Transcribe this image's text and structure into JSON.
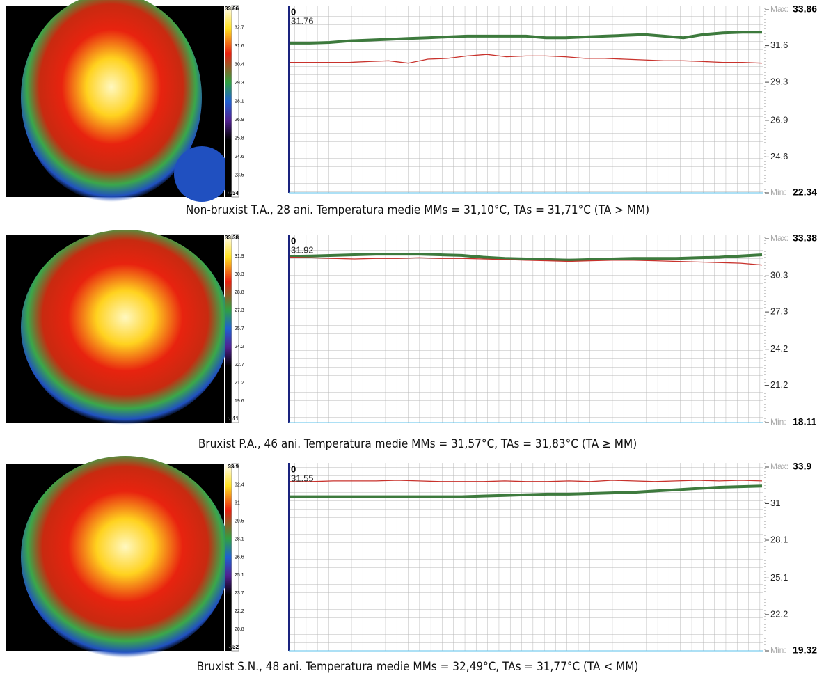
{
  "figure": {
    "captions": [
      "Non-bruxist T.A., 28 ani. Temperatura medie MMs = 31,10°C, TAs = 31,71°C (TA > MM)",
      "Bruxist P.A., 46 ani. Temperatura medie MMs = 31,57°C, TAs = 31,83°C (TA ≥ MM)",
      "Bruxist S.N., 48 ani. Temperatura medie MMs = 32,49°C, TAs = 31,77°C (TA < MM)"
    ],
    "colorbars": [
      {
        "max_label": "Max:",
        "min_label": "Min:",
        "ticks": [
          33.86,
          32.7,
          31.6,
          30.4,
          29.3,
          28.1,
          26.9,
          25.8,
          24.6,
          23.5,
          22.34
        ]
      },
      {
        "max_label": "Max:",
        "min_label": "Min:",
        "ticks": [
          33.38,
          31.9,
          30.3,
          28.8,
          27.3,
          25.7,
          24.2,
          22.7,
          21.2,
          19.6,
          18.11
        ]
      },
      {
        "max_label": "Max:",
        "min_label": "Min:",
        "ticks": [
          33.9,
          32.4,
          31,
          29.5,
          28.1,
          26.6,
          25.1,
          23.7,
          22.2,
          20.8,
          19.32
        ]
      }
    ]
  },
  "chart_data": [
    {
      "type": "line",
      "ylim": [
        22.34,
        33.86
      ],
      "yticks": [
        22.34,
        24.6,
        26.9,
        29.3,
        31.6,
        33.86
      ],
      "max_label": "Max:",
      "min_label": "Min:",
      "cursor_label": "0",
      "cursor_value": 31.76,
      "grid": true,
      "series": [
        {
          "color": "#3d7a3d",
          "values": [
            31.76,
            31.76,
            31.8,
            31.9,
            31.95,
            32.0,
            32.05,
            32.1,
            32.15,
            32.2,
            32.2,
            32.2,
            32.2,
            32.1,
            32.1,
            32.15,
            32.2,
            32.25,
            32.3,
            32.2,
            32.1,
            32.3,
            32.4,
            32.45,
            32.45
          ]
        },
        {
          "color": "#c8322c",
          "values": [
            30.55,
            30.55,
            30.55,
            30.55,
            30.6,
            30.65,
            30.5,
            30.75,
            30.8,
            30.95,
            31.05,
            30.9,
            30.95,
            30.95,
            30.9,
            30.8,
            30.8,
            30.75,
            30.7,
            30.65,
            30.65,
            30.6,
            30.55,
            30.55,
            30.5
          ]
        }
      ]
    },
    {
      "type": "line",
      "ylim": [
        18.11,
        33.38
      ],
      "yticks": [
        18.11,
        21.2,
        24.2,
        27.3,
        30.3,
        33.38
      ],
      "max_label": "Max:",
      "min_label": "Min:",
      "cursor_label": "0",
      "cursor_value": 31.92,
      "grid": true,
      "series": [
        {
          "color": "#3d7a3d",
          "values": [
            31.92,
            31.95,
            32.0,
            32.05,
            32.1,
            32.1,
            32.1,
            32.05,
            32.0,
            31.85,
            31.75,
            31.7,
            31.65,
            31.6,
            31.65,
            31.7,
            31.75,
            31.75,
            31.75,
            31.8,
            31.85,
            31.95,
            32.05
          ]
        },
        {
          "color": "#c8322c",
          "values": [
            31.85,
            31.8,
            31.75,
            31.7,
            31.75,
            31.75,
            31.8,
            31.75,
            31.75,
            31.7,
            31.65,
            31.6,
            31.55,
            31.5,
            31.55,
            31.6,
            31.6,
            31.55,
            31.5,
            31.45,
            31.4,
            31.35,
            31.2
          ]
        }
      ]
    },
    {
      "type": "line",
      "ylim": [
        19.32,
        33.9
      ],
      "yticks": [
        19.32,
        22.2,
        25.1,
        28.1,
        31,
        33.9
      ],
      "max_label": "Max:",
      "min_label": "Min:",
      "cursor_label": "0",
      "cursor_value": 31.55,
      "grid": true,
      "series": [
        {
          "color": "#3d7a3d",
          "values": [
            31.55,
            31.55,
            31.55,
            31.55,
            31.55,
            31.55,
            31.55,
            31.55,
            31.55,
            31.6,
            31.65,
            31.7,
            31.75,
            31.75,
            31.8,
            31.85,
            31.9,
            32.0,
            32.1,
            32.2,
            32.3,
            32.35,
            32.4
          ]
        },
        {
          "color": "#c8322c",
          "values": [
            32.75,
            32.75,
            32.8,
            32.8,
            32.8,
            32.85,
            32.8,
            32.75,
            32.75,
            32.75,
            32.8,
            32.75,
            32.75,
            32.8,
            32.75,
            32.85,
            32.8,
            32.75,
            32.8,
            32.85,
            32.8,
            32.85,
            32.8
          ]
        }
      ]
    }
  ]
}
